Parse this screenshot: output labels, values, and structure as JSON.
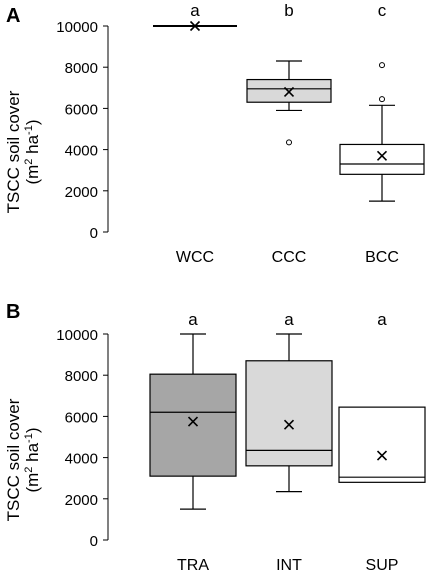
{
  "chart_data": [
    {
      "type": "box",
      "panel_label": "A",
      "ylabel_line1": "TSCC soil cover",
      "ylabel_line2_parts": [
        "(m",
        "2",
        " ha",
        "-1",
        ")"
      ],
      "yticks": [
        0,
        2000,
        4000,
        6000,
        8000,
        10000
      ],
      "ylim": [
        0,
        10000
      ],
      "categories": [
        "WCC",
        "CCC",
        "BCC"
      ],
      "letters": [
        "a",
        "b",
        "c"
      ],
      "fills": [
        "#ffffff",
        "#d9d9d9",
        "#ffffff"
      ],
      "boxes": [
        {
          "min": 10000,
          "q1": 10000,
          "median": 10000,
          "q3": 10000,
          "max": 10000,
          "mean": 10000,
          "outliers": []
        },
        {
          "min": 5900,
          "q1": 6300,
          "median": 6950,
          "q3": 7400,
          "max": 8300,
          "mean": 6800,
          "outliers": [
            4350
          ]
        },
        {
          "min": 1500,
          "q1": 2800,
          "median": 3300,
          "q3": 4250,
          "max": 6150,
          "mean": 3700,
          "outliers": [
            6450,
            8100
          ]
        }
      ]
    },
    {
      "type": "box",
      "panel_label": "B",
      "ylabel_line1": "TSCC soil cover",
      "ylabel_line2_parts": [
        "(m",
        "2",
        " ha",
        "-1",
        ")"
      ],
      "yticks": [
        0,
        2000,
        4000,
        6000,
        8000,
        10000
      ],
      "ylim": [
        0,
        10000
      ],
      "categories": [
        "TRA",
        "INT",
        "SUP"
      ],
      "letters": [
        "a",
        "a",
        "a"
      ],
      "fills": [
        "#a6a6a6",
        "#d9d9d9",
        "#ffffff"
      ],
      "boxes": [
        {
          "min": 1500,
          "q1": 3100,
          "median": 6200,
          "q3": 8050,
          "max": 10000,
          "mean": 5750,
          "outliers": []
        },
        {
          "min": 2350,
          "q1": 3600,
          "median": 4350,
          "q3": 8700,
          "max": 10000,
          "mean": 5600,
          "outliers": []
        },
        {
          "min": 2800,
          "q1": 2800,
          "median": 3050,
          "q3": 6450,
          "max": 6450,
          "mean": 4100,
          "outliers": []
        }
      ]
    }
  ]
}
